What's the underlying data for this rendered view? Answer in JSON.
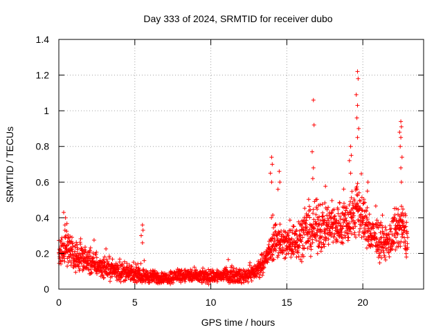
{
  "chart_data": {
    "type": "scatter",
    "title": "Day 333 of 2024, SRMTID for receiver dubo",
    "xlabel": "GPS time / hours",
    "ylabel": "SRMTID / TECUs",
    "xlim": [
      0,
      24
    ],
    "ylim": [
      0,
      1.4
    ],
    "xticks": [
      0,
      5,
      10,
      15,
      20
    ],
    "xtick_labels": [
      "0",
      "5",
      "10",
      "15",
      "20"
    ],
    "yticks": [
      0,
      0.2,
      0.4,
      0.6,
      0.8,
      1,
      1.2,
      1.4
    ],
    "ytick_labels": [
      "0",
      "0.2",
      "0.4",
      "0.6",
      "0.8",
      "1",
      "1.2",
      "1.4"
    ],
    "grid": true,
    "marker": "+",
    "series": [
      {
        "name": "SRMTID",
        "color": "#ff0000",
        "profile": [
          {
            "x": 0.0,
            "base": 0.18,
            "spread": 0.1
          },
          {
            "x": 0.5,
            "base": 0.26,
            "spread": 0.14
          },
          {
            "x": 1.0,
            "base": 0.18,
            "spread": 0.1
          },
          {
            "x": 2.0,
            "base": 0.15,
            "spread": 0.09
          },
          {
            "x": 3.0,
            "base": 0.12,
            "spread": 0.07
          },
          {
            "x": 4.0,
            "base": 0.1,
            "spread": 0.07
          },
          {
            "x": 5.0,
            "base": 0.08,
            "spread": 0.05
          },
          {
            "x": 6.0,
            "base": 0.07,
            "spread": 0.05
          },
          {
            "x": 7.0,
            "base": 0.06,
            "spread": 0.04
          },
          {
            "x": 8.0,
            "base": 0.08,
            "spread": 0.05
          },
          {
            "x": 9.0,
            "base": 0.07,
            "spread": 0.05
          },
          {
            "x": 10.0,
            "base": 0.07,
            "spread": 0.05
          },
          {
            "x": 11.0,
            "base": 0.08,
            "spread": 0.05
          },
          {
            "x": 12.0,
            "base": 0.07,
            "spread": 0.05
          },
          {
            "x": 13.0,
            "base": 0.1,
            "spread": 0.06
          },
          {
            "x": 13.7,
            "base": 0.18,
            "spread": 0.08
          },
          {
            "x": 14.2,
            "base": 0.28,
            "spread": 0.14
          },
          {
            "x": 15.0,
            "base": 0.25,
            "spread": 0.12
          },
          {
            "x": 16.0,
            "base": 0.3,
            "spread": 0.16
          },
          {
            "x": 17.0,
            "base": 0.35,
            "spread": 0.18
          },
          {
            "x": 18.0,
            "base": 0.35,
            "spread": 0.16
          },
          {
            "x": 19.0,
            "base": 0.38,
            "spread": 0.18
          },
          {
            "x": 19.7,
            "base": 0.45,
            "spread": 0.22
          },
          {
            "x": 20.5,
            "base": 0.3,
            "spread": 0.14
          },
          {
            "x": 21.5,
            "base": 0.25,
            "spread": 0.12
          },
          {
            "x": 22.5,
            "base": 0.35,
            "spread": 0.18
          },
          {
            "x": 22.9,
            "base": 0.3,
            "spread": 0.15
          }
        ],
        "x_start": 0.0,
        "x_end": 22.95,
        "count": 2200,
        "bursts": [
          {
            "x": 0.4,
            "y": [
              0.36,
              0.4,
              0.43,
              0.33
            ]
          },
          {
            "x": 5.5,
            "y": [
              0.36,
              0.33,
              0.3,
              0.26
            ]
          },
          {
            "x": 14.0,
            "y": [
              0.74,
              0.7,
              0.65,
              0.6
            ]
          },
          {
            "x": 14.5,
            "y": [
              0.66,
              0.6,
              0.56
            ]
          },
          {
            "x": 16.75,
            "y": [
              1.06,
              0.92,
              0.77,
              0.68,
              0.62
            ]
          },
          {
            "x": 19.2,
            "y": [
              0.8,
              0.75,
              0.72,
              0.65
            ]
          },
          {
            "x": 19.65,
            "y": [
              1.22,
              1.18,
              1.09,
              1.03,
              0.96,
              0.9,
              0.85
            ]
          },
          {
            "x": 20.3,
            "y": [
              0.55,
              0.6
            ]
          },
          {
            "x": 22.5,
            "y": [
              0.94,
              0.91,
              0.88,
              0.85,
              0.8,
              0.74,
              0.68,
              0.6
            ]
          }
        ]
      }
    ]
  }
}
